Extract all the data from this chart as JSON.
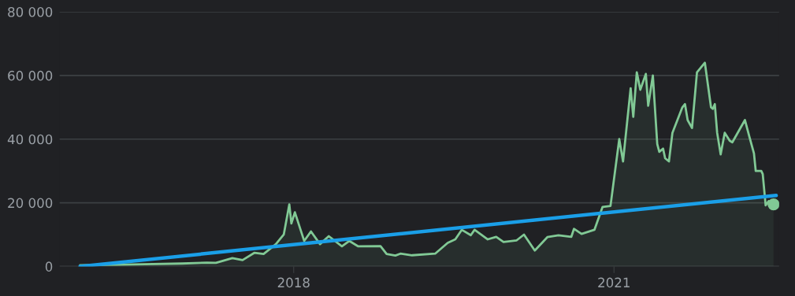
{
  "chart_data": {
    "type": "area",
    "xlim": [
      "2015-10-23",
      "2022-07-20"
    ],
    "xticks": [
      "2018",
      "2021"
    ],
    "ylim": [
      0,
      80000
    ],
    "yticks": [
      {
        "value": 0,
        "label": "0"
      },
      {
        "value": 20000,
        "label": "20 000"
      },
      {
        "value": 40000,
        "label": "40 000"
      },
      {
        "value": 60000,
        "label": "60 000"
      },
      {
        "value": 80000,
        "label": "80 000"
      }
    ],
    "grid": "y",
    "legend": false,
    "series": [
      {
        "color": "#81c995",
        "x": [
          "2016-01-01",
          "2016-07-01",
          "2016-12-15",
          "2017-03-10",
          "2017-04-10",
          "2017-06-05",
          "2017-07-10",
          "2017-08-20",
          "2017-09-20",
          "2017-11-01",
          "2017-11-28",
          "2017-12-17",
          "2017-12-24",
          "2018-01-05",
          "2018-02-06",
          "2018-03-01",
          "2018-04-01",
          "2018-05-01",
          "2018-06-15",
          "2018-07-10",
          "2018-08-10",
          "2018-10-25",
          "2018-11-15",
          "2018-12-15",
          "2019-01-01",
          "2019-02-10",
          "2019-04-30",
          "2019-06-12",
          "2019-07-08",
          "2019-07-30",
          "2019-08-30",
          "2019-09-12",
          "2019-10-27",
          "2019-11-25",
          "2019-12-20",
          "2020-02-03",
          "2020-02-28",
          "2020-04-05",
          "2020-05-18",
          "2020-06-25",
          "2020-08-08",
          "2020-08-17",
          "2020-09-12",
          "2020-10-26",
          "2020-11-23",
          "2020-12-20",
          "2021-01-19",
          "2021-02-01",
          "2021-02-27",
          "2021-03-08",
          "2021-03-20",
          "2021-04-01",
          "2021-04-20",
          "2021-04-28",
          "2021-05-14",
          "2021-05-29",
          "2021-06-05",
          "2021-06-18",
          "2021-06-25",
          "2021-07-08",
          "2021-07-20",
          "2021-08-23",
          "2021-09-01",
          "2021-09-10",
          "2021-09-25",
          "2021-10-12",
          "2021-11-08",
          "2021-11-29",
          "2021-12-05",
          "2021-12-12",
          "2021-12-20",
          "2022-01-01",
          "2022-01-15",
          "2022-02-01",
          "2022-02-10",
          "2022-03-25",
          "2022-04-10",
          "2022-04-25",
          "2022-05-01",
          "2022-05-20",
          "2022-05-25",
          "2022-06-04",
          "2022-06-14",
          "2022-07-01"
        ],
        "values": [
          400,
          600,
          900,
          1200,
          1100,
          2600,
          2000,
          4300,
          3900,
          7000,
          10000,
          19500,
          13500,
          17000,
          8000,
          11000,
          7000,
          9500,
          6300,
          8000,
          6300,
          6400,
          3900,
          3400,
          4000,
          3500,
          4000,
          7400,
          8500,
          11500,
          9800,
          11500,
          8500,
          9300,
          7700,
          8200,
          10000,
          5000,
          9200,
          9800,
          9300,
          11800,
          10200,
          11500,
          18700,
          19000,
          40000,
          33000,
          56000,
          47000,
          61000,
          55500,
          60500,
          50500,
          60000,
          38500,
          36000,
          37000,
          34000,
          33000,
          42000,
          50000,
          51000,
          46000,
          43500,
          61000,
          64000,
          50000,
          49500,
          51000,
          42000,
          35200,
          42000,
          39500,
          39000,
          46000,
          40500,
          35500,
          30000,
          30000,
          29000,
          19200,
          20500,
          19500
        ]
      },
      {
        "type": "scatter",
        "color": "#81c995",
        "marker": "circle",
        "x": [
          "2022-07-01"
        ],
        "values": [
          19500
        ]
      },
      {
        "type": "line",
        "color": "#1a9fe8",
        "x": [
          "2016-01-01",
          "2022-07-10"
        ],
        "values": [
          0,
          22300
        ]
      }
    ]
  }
}
